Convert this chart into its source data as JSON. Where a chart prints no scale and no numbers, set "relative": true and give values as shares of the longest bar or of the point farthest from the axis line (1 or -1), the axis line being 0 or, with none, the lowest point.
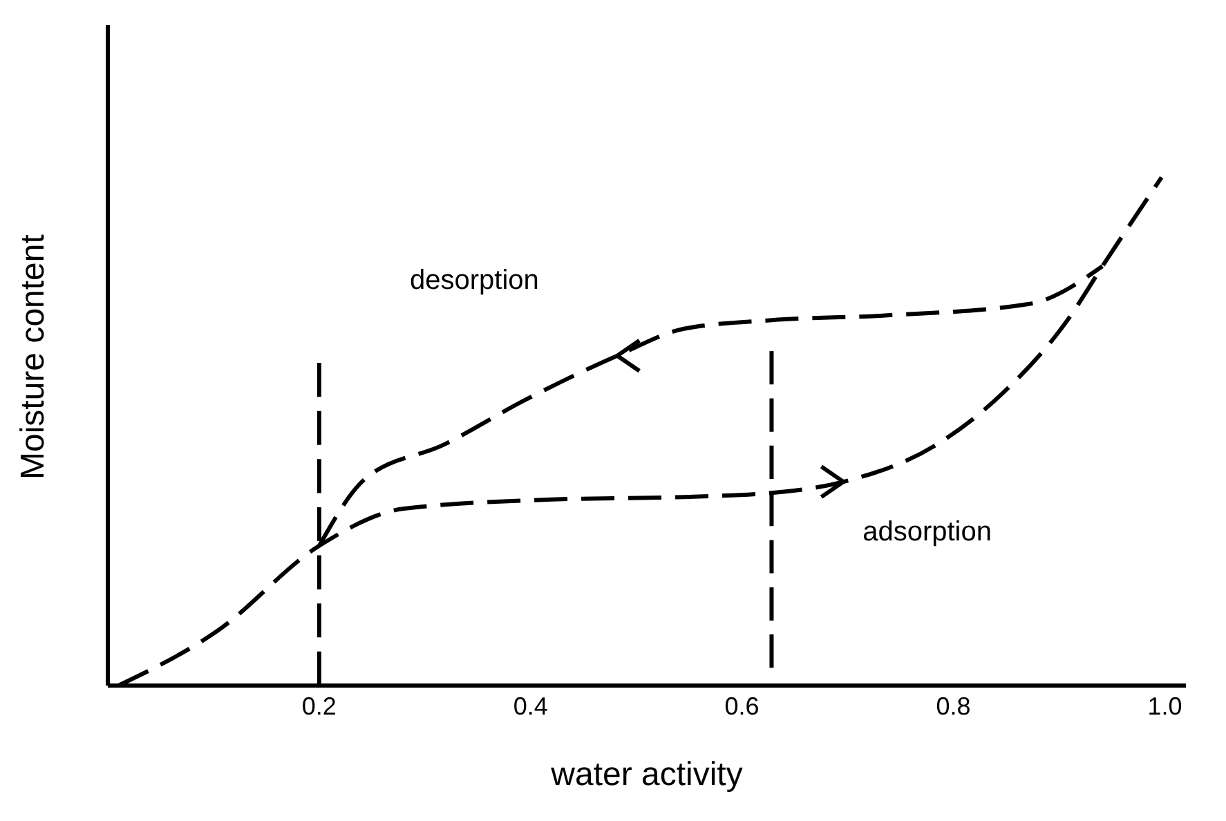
{
  "chart_data": {
    "type": "line",
    "xlabel": "water activity",
    "ylabel": "Moisture content",
    "relative": true,
    "line_style": "dashed",
    "marker": "none",
    "xlim": [
      0,
      1.02
    ],
    "xticks": [
      0.2,
      0.4,
      0.6,
      0.8,
      {
        "value": 1.0,
        "label": "1.0"
      }
    ],
    "series": [
      {
        "color": "#000000",
        "x": [
          0.01,
          0.104,
          0.2,
          0.28,
          0.42,
          0.545,
          0.633,
          0.696,
          0.784,
          0.847,
          0.909,
          0.941,
          0.997
        ],
        "values": [
          0,
          0.108,
          0.275,
          0.348,
          0.366,
          0.371,
          0.38,
          0.401,
          0.474,
          0.576,
          0.722,
          0.825,
          1.0
        ]
      },
      {
        "color": "#000000",
        "x": [
          0.2,
          0.243,
          0.318,
          0.394,
          0.482,
          0.545,
          0.628,
          0.733,
          0.872,
          0.941
        ],
        "values": [
          0.275,
          0.406,
          0.474,
          0.561,
          0.649,
          0.702,
          0.719,
          0.728,
          0.751,
          0.825
        ]
      },
      {
        "color": "#000000",
        "x": [
          0.2,
          0.2
        ],
        "values": [
          0,
          0.635
        ]
      },
      {
        "color": "#000000",
        "x": [
          0.628,
          0.628
        ],
        "values": [
          0.035,
          0.658
        ]
      }
    ],
    "annotations": [
      "desorption",
      "adsorption"
    ]
  }
}
